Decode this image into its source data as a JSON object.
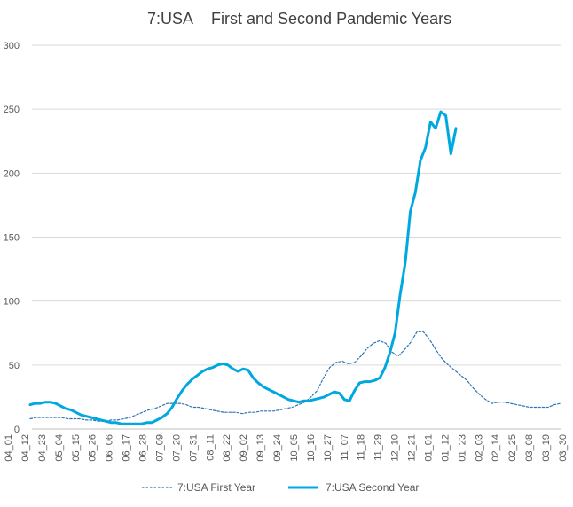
{
  "chart_data": {
    "type": "line",
    "title_left": "7:USA",
    "title_right": "First and Second Pandemic Years",
    "xlabel": "",
    "ylabel": "",
    "ylim": [
      0,
      300
    ],
    "yticks": [
      0,
      50,
      100,
      150,
      200,
      250,
      300
    ],
    "grid": true,
    "legend_position": "bottom",
    "x_tick_labels": [
      "04_01",
      "04_12",
      "04_23",
      "05_04",
      "05_15",
      "05_26",
      "06_06",
      "06_17",
      "06_28",
      "07_09",
      "07_20",
      "07_31",
      "08_11",
      "08_22",
      "09_02",
      "09_13",
      "09_24",
      "10_05",
      "10_16",
      "10_27",
      "11_07",
      "11_18",
      "11_29",
      "12_10",
      "12_21",
      "01_01",
      "01_12",
      "01_23",
      "02_03",
      "02_14",
      "02_25",
      "03_08",
      "03_19",
      "03_30"
    ],
    "series": [
      {
        "name": "7:USA First Year",
        "style": "dotted",
        "color": "#2e75b6",
        "values": [
          8,
          9,
          9,
          9,
          9,
          9,
          8,
          8,
          8,
          7,
          7,
          6,
          6,
          7,
          7,
          8,
          9,
          11,
          13,
          15,
          16,
          18,
          20,
          20,
          20,
          19,
          17,
          17,
          16,
          15,
          14,
          13,
          13,
          13,
          12,
          13,
          13,
          14,
          14,
          14,
          15,
          16,
          17,
          19,
          21,
          25,
          30,
          40,
          48,
          52,
          53,
          51,
          52,
          57,
          63,
          67,
          69,
          67,
          60,
          57,
          62,
          68,
          76,
          76,
          70,
          62,
          55,
          50,
          46,
          42,
          38,
          32,
          27,
          23,
          20,
          21,
          21,
          20,
          19,
          18,
          17,
          17,
          17,
          17,
          19,
          20
        ]
      },
      {
        "name": "7:USA Second Year",
        "style": "solid",
        "color": "#00a8e0",
        "values": [
          19,
          20,
          20,
          21,
          21,
          20,
          18,
          16,
          15,
          13,
          11,
          10,
          9,
          8,
          7,
          6,
          5,
          5,
          4,
          4,
          4,
          4,
          4,
          5,
          5,
          7,
          9,
          12,
          17,
          24,
          30,
          35,
          39,
          42,
          45,
          47,
          48,
          50,
          51,
          50,
          47,
          45,
          47,
          46,
          40,
          36,
          33,
          31,
          29,
          27,
          25,
          23,
          22,
          21,
          22,
          22,
          23,
          24,
          25,
          27,
          29,
          28,
          23,
          22,
          30,
          36,
          37,
          37,
          38,
          40,
          48,
          60,
          75,
          105,
          130,
          170,
          185,
          210,
          220,
          240,
          235,
          248,
          245,
          215,
          235
        ]
      }
    ]
  }
}
